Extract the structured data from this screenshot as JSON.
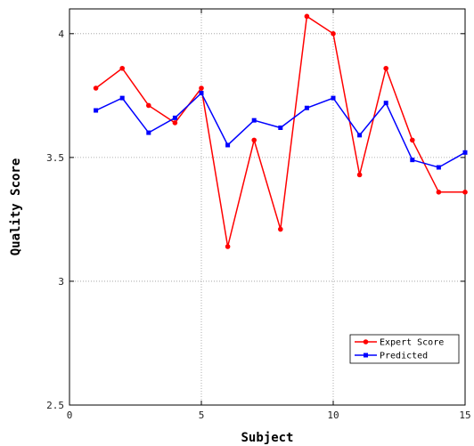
{
  "chart_data": {
    "type": "line",
    "title": "",
    "xlabel": "Subject",
    "ylabel": "Quality Score",
    "xlim": [
      0,
      15
    ],
    "ylim": [
      2.5,
      4.1
    ],
    "xticks": [
      0,
      5,
      10,
      15
    ],
    "yticks": [
      2.5,
      3,
      3.5,
      4
    ],
    "xtick_labels": [
      "0",
      "5",
      "10",
      "15"
    ],
    "ytick_labels": [
      "2.5",
      "3",
      "3.5",
      "4"
    ],
    "grid": true,
    "legend_position": "bottom-right",
    "x": [
      1,
      2,
      3,
      4,
      5,
      6,
      7,
      8,
      9,
      10,
      11,
      12,
      13,
      14,
      15
    ],
    "series": [
      {
        "name": "Expert Score",
        "color": "#ff0000",
        "marker": "circle",
        "values": [
          3.78,
          3.86,
          3.71,
          3.64,
          3.78,
          3.14,
          3.57,
          3.21,
          4.07,
          4.0,
          3.43,
          3.86,
          3.57,
          3.36,
          3.36
        ]
      },
      {
        "name": "Predicted",
        "color": "#0000ff",
        "marker": "square",
        "values": [
          3.69,
          3.74,
          3.6,
          3.66,
          3.76,
          3.55,
          3.65,
          3.62,
          3.7,
          3.74,
          3.59,
          3.72,
          3.49,
          3.46,
          3.52
        ]
      }
    ]
  }
}
